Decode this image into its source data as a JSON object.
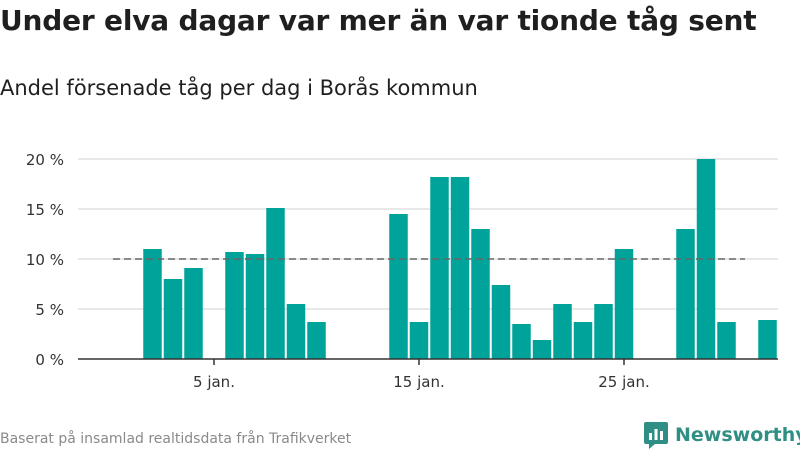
{
  "title": "Under elva dagar var mer än var tionde tåg sent",
  "subtitle": "Andel försenade tåg per dag i Borås kommun",
  "source": "Baserat på insamlad realtidsdata från Trafikverket",
  "brand": {
    "name": "Newsworthy",
    "icon": "newsworthy-logo-icon",
    "color": "#2f8f85"
  },
  "colors": {
    "bar": "#00a39a",
    "reference": "#666666",
    "grid": "#d9d9d9",
    "axis": "#333333"
  },
  "chart_data": {
    "type": "bar",
    "title": "Andel försenade tåg per dag i Borås kommun",
    "xlabel": "",
    "ylabel": "",
    "x_days": [
      1,
      2,
      3,
      4,
      5,
      6,
      7,
      8,
      9,
      10,
      11,
      12,
      13,
      14,
      15,
      16,
      17,
      18,
      19,
      20,
      21,
      22,
      23,
      24,
      25,
      26,
      27,
      28,
      29,
      30,
      31,
      32,
      33
    ],
    "values": [
      null,
      11,
      8,
      9.1,
      null,
      10.7,
      10.5,
      15.1,
      5.5,
      3.7,
      null,
      null,
      null,
      14.5,
      3.7,
      18.2,
      18.2,
      13,
      7.4,
      3.5,
      1.9,
      5.5,
      3.7,
      5.5,
      11,
      null,
      null,
      13,
      20,
      3.7,
      null,
      3.9,
      null
    ],
    "xticks": [
      {
        "day": 5,
        "label": "5 jan."
      },
      {
        "day": 15,
        "label": "15 jan."
      },
      {
        "day": 25,
        "label": "25 jan."
      }
    ],
    "yticks": [
      {
        "value": 0,
        "label": "0 %"
      },
      {
        "value": 5,
        "label": "5 %"
      },
      {
        "value": 10,
        "label": "10 %"
      },
      {
        "value": 15,
        "label": "15 %"
      },
      {
        "value": 20,
        "label": "20 %"
      }
    ],
    "ylim": [
      0,
      20
    ],
    "reference_line": 10,
    "grid": true,
    "legend": "none"
  }
}
